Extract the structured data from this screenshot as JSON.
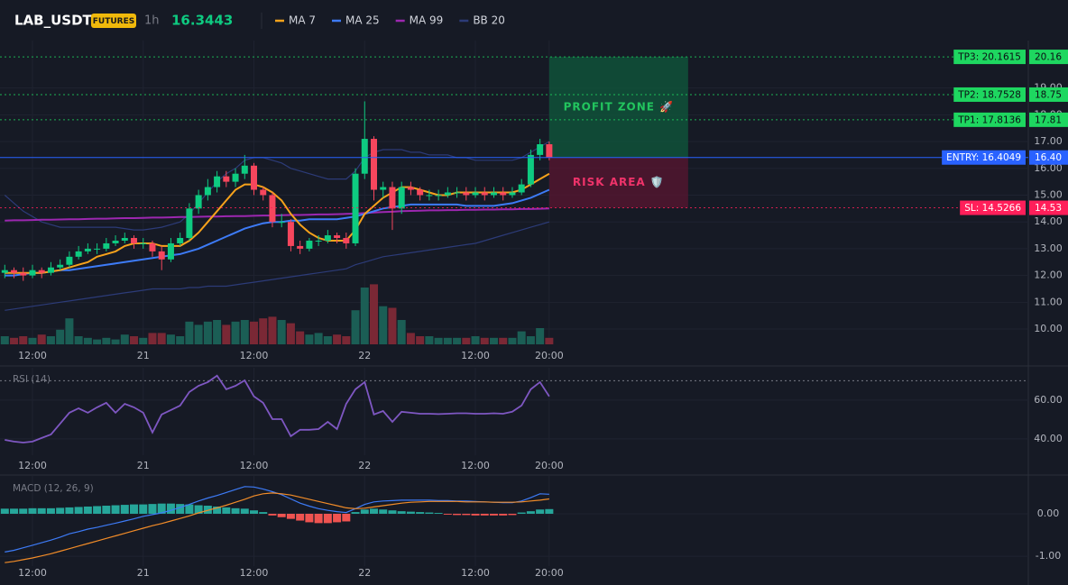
{
  "header": {
    "symbol": "LAB_USDT",
    "badge": "FUTURES",
    "interval": "1h",
    "price": 16.3443
  },
  "chart_data": [
    {
      "type": "candlestick",
      "categories": [
        null,
        null,
        null,
        "12:00",
        null,
        null,
        null,
        null,
        null,
        null,
        null,
        null,
        null,
        null,
        null,
        "21",
        null,
        null,
        null,
        null,
        null,
        null,
        null,
        null,
        null,
        null,
        null,
        "12:00",
        null,
        null,
        null,
        null,
        null,
        null,
        null,
        null,
        null,
        null,
        null,
        "22",
        null,
        null,
        null,
        null,
        null,
        null,
        null,
        null,
        null,
        null,
        null,
        "12:00",
        null,
        null,
        null,
        null,
        null,
        null,
        null,
        "20:00"
      ],
      "open": [
        12.1,
        12.2,
        12.1,
        12.0,
        12.2,
        12.1,
        12.3,
        12.4,
        12.7,
        12.9,
        13.0,
        13.0,
        13.2,
        13.3,
        13.4,
        13.2,
        13.2,
        12.9,
        12.6,
        13.2,
        13.4,
        14.5,
        15.0,
        15.3,
        15.7,
        15.5,
        15.8,
        16.1,
        15.2,
        15.0,
        14.0,
        14.0,
        13.1,
        13.0,
        13.3,
        13.3,
        13.5,
        13.4,
        13.2,
        15.8,
        17.1,
        15.2,
        15.3,
        14.5,
        15.3,
        15.2,
        15.0,
        15.0,
        15.0,
        15.1,
        15.1,
        15.0,
        15.1,
        15.0,
        15.1,
        15.0,
        15.1,
        15.4,
        16.5,
        16.9
      ],
      "high": [
        12.4,
        12.3,
        12.3,
        12.4,
        12.3,
        12.5,
        12.6,
        12.9,
        13.1,
        13.2,
        13.2,
        13.4,
        13.5,
        13.6,
        13.5,
        13.4,
        13.3,
        13.1,
        13.4,
        13.6,
        14.7,
        15.2,
        15.6,
        15.9,
        15.9,
        16.0,
        16.5,
        16.2,
        15.3,
        15.1,
        14.3,
        14.1,
        13.3,
        13.4,
        13.5,
        13.7,
        13.6,
        13.6,
        16.0,
        18.5,
        17.2,
        15.5,
        15.5,
        15.5,
        15.5,
        15.3,
        15.2,
        15.2,
        15.3,
        15.3,
        15.3,
        15.3,
        15.3,
        15.3,
        15.3,
        15.3,
        15.6,
        16.7,
        17.1,
        17.0
      ],
      "low": [
        11.9,
        11.9,
        11.8,
        11.9,
        11.9,
        12.0,
        12.2,
        12.3,
        12.6,
        12.8,
        12.8,
        12.9,
        13.1,
        13.2,
        13.0,
        13.0,
        12.7,
        12.2,
        12.5,
        13.1,
        13.3,
        14.3,
        14.8,
        15.1,
        15.3,
        15.3,
        15.6,
        15.0,
        14.8,
        13.8,
        13.8,
        12.9,
        12.8,
        12.9,
        13.1,
        13.2,
        13.2,
        13.0,
        13.1,
        15.6,
        14.8,
        14.9,
        13.7,
        14.3,
        15.0,
        14.8,
        14.8,
        14.8,
        14.9,
        14.9,
        14.8,
        14.9,
        14.8,
        14.9,
        14.8,
        14.9,
        15.0,
        15.3,
        16.3,
        16.3
      ],
      "close": [
        12.2,
        12.1,
        12.0,
        12.2,
        12.1,
        12.3,
        12.4,
        12.7,
        12.9,
        13.0,
        13.0,
        13.2,
        13.3,
        13.4,
        13.2,
        13.2,
        12.9,
        12.6,
        13.2,
        13.4,
        14.5,
        15.0,
        15.3,
        15.7,
        15.5,
        15.8,
        16.1,
        15.2,
        15.0,
        14.0,
        14.0,
        13.1,
        13.0,
        13.3,
        13.3,
        13.5,
        13.4,
        13.2,
        15.8,
        17.1,
        15.2,
        15.3,
        14.5,
        15.3,
        15.2,
        15.0,
        15.0,
        15.0,
        15.1,
        15.1,
        15.0,
        15.1,
        15.0,
        15.1,
        15.0,
        15.1,
        15.4,
        16.5,
        16.9,
        16.4
      ],
      "volume": [
        10,
        8,
        10,
        8,
        12,
        10,
        18,
        32,
        10,
        8,
        6,
        8,
        6,
        12,
        10,
        8,
        14,
        14,
        12,
        10,
        28,
        24,
        28,
        30,
        24,
        28,
        30,
        28,
        32,
        34,
        30,
        26,
        16,
        12,
        14,
        10,
        12,
        10,
        42,
        70,
        74,
        47,
        45,
        30,
        14,
        10,
        10,
        8,
        8,
        8,
        8,
        10,
        8,
        8,
        8,
        8,
        16,
        10,
        20,
        8
      ],
      "volume_ylim": [
        0,
        100
      ],
      "up_color": "#0ecb81",
      "down_color": "#f6465d",
      "volume_up_color": "#1b5e55",
      "volume_down_color": "#7a2835",
      "ylim": [
        9.43,
        20.77
      ],
      "yticks": [
        {
          "value": 10,
          "label": "10.00"
        },
        {
          "value": 11,
          "label": "11.00"
        },
        {
          "value": 12,
          "label": "12.00"
        },
        {
          "value": 13,
          "label": "13.00"
        },
        {
          "value": 14,
          "label": "14.00"
        },
        {
          "value": 15,
          "label": "15.00"
        },
        {
          "value": 16,
          "label": "16.00"
        },
        {
          "value": 17,
          "label": "17.00"
        },
        {
          "value": 18,
          "label": "18.00"
        },
        {
          "value": 19,
          "label": "19.00"
        }
      ],
      "grid": true,
      "series": [
        {
          "name": "MA 7",
          "color": "#f7a21b",
          "values": [
            12.1,
            12.1,
            12.1,
            12.1,
            12.1,
            12.15,
            12.2,
            12.3,
            12.4,
            12.5,
            12.7,
            12.8,
            12.9,
            13.1,
            13.2,
            13.2,
            13.2,
            13.1,
            13.1,
            13.1,
            13.3,
            13.6,
            14.0,
            14.4,
            14.8,
            15.2,
            15.4,
            15.4,
            15.3,
            15.1,
            14.8,
            14.3,
            13.9,
            13.6,
            13.4,
            13.3,
            13.3,
            13.3,
            13.7,
            14.3,
            14.6,
            14.9,
            15.1,
            15.3,
            15.3,
            15.2,
            15.1,
            15.0,
            15.0,
            15.1,
            15.1,
            15.1,
            15.1,
            15.1,
            15.1,
            15.1,
            15.2,
            15.4,
            15.6,
            15.8
          ]
        },
        {
          "name": "MA 25",
          "color": "#3d7bf7",
          "values": [
            12.0,
            12.0,
            12.05,
            12.1,
            12.1,
            12.15,
            12.2,
            12.2,
            12.25,
            12.3,
            12.35,
            12.4,
            12.45,
            12.5,
            12.55,
            12.6,
            12.65,
            12.7,
            12.75,
            12.8,
            12.9,
            13.0,
            13.15,
            13.3,
            13.45,
            13.6,
            13.75,
            13.85,
            13.95,
            14.0,
            14.0,
            14.05,
            14.05,
            14.1,
            14.1,
            14.1,
            14.1,
            14.15,
            14.2,
            14.3,
            14.4,
            14.5,
            14.55,
            14.6,
            14.65,
            14.65,
            14.65,
            14.65,
            14.65,
            14.65,
            14.6,
            14.6,
            14.6,
            14.6,
            14.65,
            14.7,
            14.8,
            14.9,
            15.05,
            15.2
          ]
        },
        {
          "name": "MA 99",
          "color": "#9c27b0",
          "values": [
            14.05,
            14.06,
            14.06,
            14.07,
            14.08,
            14.08,
            14.09,
            14.1,
            14.1,
            14.11,
            14.12,
            14.12,
            14.13,
            14.14,
            14.14,
            14.15,
            14.16,
            14.16,
            14.17,
            14.18,
            14.18,
            14.19,
            14.2,
            14.2,
            14.21,
            14.22,
            14.22,
            14.23,
            14.24,
            14.24,
            14.25,
            14.26,
            14.26,
            14.27,
            14.28,
            14.28,
            14.29,
            14.3,
            14.31,
            14.33,
            14.35,
            14.37,
            14.38,
            14.4,
            14.41,
            14.42,
            14.43,
            14.43,
            14.44,
            14.44,
            14.45,
            14.45,
            14.46,
            14.46,
            14.47,
            14.47,
            14.48,
            14.48,
            14.49,
            14.5
          ]
        }
      ],
      "bands": [
        {
          "name": "BB 20",
          "color": "#2c3b78",
          "upper": [
            15.0,
            14.7,
            14.4,
            14.2,
            14.0,
            13.9,
            13.8,
            13.8,
            13.8,
            13.8,
            13.8,
            13.8,
            13.8,
            13.75,
            13.7,
            13.7,
            13.75,
            13.8,
            13.9,
            14.0,
            14.3,
            14.7,
            15.1,
            15.5,
            15.8,
            16.0,
            16.3,
            16.4,
            16.4,
            16.3,
            16.2,
            16.0,
            15.9,
            15.8,
            15.7,
            15.6,
            15.6,
            15.6,
            15.9,
            16.4,
            16.6,
            16.7,
            16.7,
            16.7,
            16.6,
            16.6,
            16.5,
            16.5,
            16.5,
            16.4,
            16.4,
            16.3,
            16.3,
            16.3,
            16.3,
            16.3,
            16.4,
            16.6,
            16.8,
            17.0
          ],
          "lower": [
            10.7,
            10.75,
            10.8,
            10.85,
            10.9,
            10.95,
            11.0,
            11.05,
            11.1,
            11.15,
            11.2,
            11.25,
            11.3,
            11.35,
            11.4,
            11.45,
            11.5,
            11.5,
            11.5,
            11.5,
            11.55,
            11.55,
            11.6,
            11.6,
            11.6,
            11.65,
            11.7,
            11.75,
            11.8,
            11.85,
            11.9,
            11.95,
            12.0,
            12.05,
            12.1,
            12.15,
            12.2,
            12.25,
            12.4,
            12.5,
            12.6,
            12.7,
            12.75,
            12.8,
            12.85,
            12.9,
            12.95,
            13.0,
            13.05,
            13.1,
            13.15,
            13.2,
            13.3,
            13.4,
            13.5,
            13.6,
            13.7,
            13.8,
            13.9,
            14.0
          ]
        }
      ],
      "levels": [
        {
          "text": "TP3: 20.1615",
          "value": 20.1615,
          "axis_label": "20.16",
          "color": "#1ed760",
          "text_color": "#0b0e14",
          "style": "dotted"
        },
        {
          "text": "TP2: 18.7528",
          "value": 18.7528,
          "axis_label": "18.75",
          "color": "#1ed760",
          "text_color": "#0b0e14",
          "style": "dotted"
        },
        {
          "text": "TP1: 17.8136",
          "value": 17.8136,
          "axis_label": "17.81",
          "color": "#1ed760",
          "text_color": "#0b0e14",
          "style": "dotted"
        },
        {
          "text": "ENTRY: 16.4049",
          "value": 16.4049,
          "axis_label": "16.40",
          "color": "#2962ff",
          "text_color": "#ffffff",
          "style": "solid"
        },
        {
          "text": "SL: 14.5266",
          "value": 14.5266,
          "axis_label": "14.53",
          "color": "#ff1f5a",
          "text_color": "#ffffff",
          "style": "dotted"
        }
      ],
      "zones": [
        {
          "text": "PROFIT ZONE 🚀",
          "from": 16.4049,
          "to": 20.1615,
          "color": "#0f5a3c",
          "text_color": "#22c55e"
        },
        {
          "text": "RISK AREA 🛡️",
          "from": 14.5266,
          "to": 16.4049,
          "color": "#5a1530",
          "text_color": "#f0336a"
        }
      ]
    },
    {
      "type": "line",
      "title": "RSI (14)",
      "color": "#7e57c2",
      "values": [
        39.5,
        38.6,
        38.1,
        38.6,
        40.5,
        42.3,
        47.9,
        53.5,
        55.8,
        53.5,
        56.3,
        58.6,
        53.5,
        58.1,
        56.3,
        53.5,
        43.3,
        52.6,
        54.9,
        57.2,
        64.2,
        67.4,
        69.3,
        72.6,
        65.6,
        67.4,
        70.2,
        61.9,
        58.6,
        50.2,
        50.2,
        41.4,
        44.7,
        44.7,
        45.1,
        48.8,
        45.1,
        58.1,
        65.6,
        69.3,
        52.6,
        54.4,
        48.8,
        54.0,
        53.5,
        53.0,
        53.0,
        52.8,
        53.0,
        53.2,
        53.2,
        53.0,
        53.0,
        53.2,
        53.0,
        54.0,
        57.2,
        65.6,
        69.3,
        61.9
      ],
      "ylim": [
        31.6,
        76.7
      ],
      "yticks": [
        {
          "value": 40,
          "label": "40.00"
        },
        {
          "value": 60,
          "label": "60.00"
        }
      ],
      "level": 70,
      "grid": true
    },
    {
      "type": "macd",
      "title": "MACD (12, 26, 9)",
      "series": [
        {
          "color": "#3d7bf7",
          "values": [
            -0.9,
            -0.86,
            -0.8,
            -0.74,
            -0.68,
            -0.62,
            -0.55,
            -0.47,
            -0.42,
            -0.36,
            -0.32,
            -0.27,
            -0.22,
            -0.17,
            -0.12,
            -0.06,
            -0.02,
            0.02,
            0.08,
            0.15,
            0.22,
            0.3,
            0.37,
            0.43,
            0.5,
            0.57,
            0.64,
            0.63,
            0.58,
            0.52,
            0.45,
            0.35,
            0.25,
            0.18,
            0.12,
            0.08,
            0.05,
            0.03,
            0.12,
            0.22,
            0.28,
            0.3,
            0.31,
            0.32,
            0.32,
            0.32,
            0.32,
            0.31,
            0.31,
            0.3,
            0.3,
            0.29,
            0.28,
            0.27,
            0.26,
            0.26,
            0.3,
            0.38,
            0.47,
            0.46
          ]
        },
        {
          "color": "#f28c28",
          "values": [
            -1.15,
            -1.12,
            -1.08,
            -1.04,
            -0.99,
            -0.94,
            -0.88,
            -0.82,
            -0.76,
            -0.7,
            -0.64,
            -0.58,
            -0.52,
            -0.46,
            -0.4,
            -0.34,
            -0.28,
            -0.23,
            -0.17,
            -0.11,
            -0.05,
            0.02,
            0.08,
            0.14,
            0.2,
            0.27,
            0.34,
            0.42,
            0.47,
            0.49,
            0.47,
            0.44,
            0.39,
            0.34,
            0.29,
            0.24,
            0.19,
            0.14,
            0.12,
            0.13,
            0.16,
            0.19,
            0.22,
            0.25,
            0.27,
            0.28,
            0.29,
            0.29,
            0.29,
            0.29,
            0.28,
            0.28,
            0.28,
            0.27,
            0.27,
            0.27,
            0.28,
            0.3,
            0.32,
            0.35
          ]
        }
      ],
      "histogram": [
        0.12,
        0.12,
        0.12,
        0.13,
        0.13,
        0.13,
        0.14,
        0.15,
        0.16,
        0.17,
        0.18,
        0.19,
        0.2,
        0.21,
        0.22,
        0.22,
        0.23,
        0.24,
        0.24,
        0.23,
        0.22,
        0.2,
        0.19,
        0.17,
        0.15,
        0.13,
        0.12,
        0.08,
        0.04,
        -0.04,
        -0.08,
        -0.12,
        -0.16,
        -0.2,
        -0.22,
        -0.22,
        -0.2,
        -0.18,
        0.04,
        0.1,
        0.12,
        0.1,
        0.08,
        0.06,
        0.05,
        0.04,
        0.03,
        0.02,
        -0.02,
        -0.03,
        -0.03,
        -0.04,
        -0.04,
        -0.04,
        -0.04,
        -0.03,
        0.03,
        0.06,
        0.1,
        0.11
      ],
      "up_color": "#26a69a",
      "down_color": "#ef5350",
      "ylim": [
        -1.23,
        0.89
      ],
      "yticks": [
        {
          "value": 0,
          "label": "0.00"
        },
        {
          "value": -1,
          "label": "-1.00"
        }
      ],
      "grid": true
    }
  ]
}
